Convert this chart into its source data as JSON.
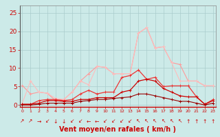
{
  "background_color": "#cceae8",
  "grid_color": "#aacccc",
  "xlabel": "Vent moyen/en rafales ( km/h )",
  "xlabel_color": "#cc0000",
  "xlabel_fontsize": 7,
  "tick_color": "#cc0000",
  "yticks": [
    0,
    5,
    10,
    15,
    20,
    25
  ],
  "xticks": [
    0,
    1,
    2,
    3,
    4,
    5,
    6,
    7,
    8,
    9,
    10,
    11,
    12,
    13,
    14,
    15,
    16,
    17,
    18,
    19,
    20,
    21,
    22,
    23
  ],
  "ylim": [
    -0.5,
    27
  ],
  "xlim": [
    -0.3,
    23.3
  ],
  "series": [
    {
      "x": [
        0,
        1,
        2,
        3,
        4,
        5,
        6,
        7,
        8,
        9,
        10,
        11,
        12,
        13,
        14,
        15,
        16,
        17,
        18,
        19,
        20,
        21,
        22,
        23
      ],
      "y": [
        5.3,
        3.0,
        3.5,
        3.2,
        1.2,
        1.5,
        3.5,
        6.5,
        8.5,
        10.5,
        10.2,
        8.5,
        8.5,
        8.5,
        19.5,
        21.0,
        15.5,
        15.8,
        11.5,
        11.0,
        6.5,
        6.5,
        5.2,
        5.2
      ],
      "color": "#ff9999",
      "lw": 0.8,
      "marker": "+"
    },
    {
      "x": [
        0,
        1,
        2,
        3,
        4,
        5,
        6,
        7,
        8,
        9,
        10,
        11,
        12,
        13,
        14,
        15,
        16,
        17,
        18,
        19,
        20,
        21,
        22,
        23
      ],
      "y": [
        0.5,
        6.5,
        3.5,
        3.2,
        1.8,
        1.5,
        3.5,
        6.5,
        5.5,
        10.5,
        10.2,
        8.5,
        8.5,
        8.5,
        19.5,
        21.0,
        15.5,
        15.8,
        11.5,
        6.5,
        6.5,
        6.5,
        5.2,
        5.2
      ],
      "color": "#ffbbbb",
      "lw": 0.8,
      "marker": "+"
    },
    {
      "x": [
        0,
        1,
        2,
        3,
        4,
        5,
        6,
        7,
        8,
        9,
        10,
        11,
        12,
        13,
        14,
        15,
        16,
        17,
        18,
        19,
        20,
        21,
        22,
        23
      ],
      "y": [
        0.2,
        0.2,
        1.2,
        1.5,
        1.5,
        1.2,
        1.5,
        3.0,
        4.0,
        3.0,
        3.5,
        3.5,
        7.5,
        8.0,
        9.5,
        7.0,
        7.5,
        5.0,
        5.2,
        5.2,
        5.2,
        2.2,
        0.2,
        1.5
      ],
      "color": "#ee3333",
      "lw": 0.9,
      "marker": "+"
    },
    {
      "x": [
        0,
        1,
        2,
        3,
        4,
        5,
        6,
        7,
        8,
        9,
        10,
        11,
        12,
        13,
        14,
        15,
        16,
        17,
        18,
        19,
        20,
        21,
        22,
        23
      ],
      "y": [
        0.2,
        0.2,
        0.5,
        1.2,
        1.2,
        1.0,
        1.0,
        1.5,
        1.5,
        2.0,
        2.0,
        2.0,
        3.5,
        4.0,
        6.5,
        7.0,
        6.5,
        4.5,
        3.5,
        2.5,
        2.2,
        2.2,
        0.2,
        1.2
      ],
      "color": "#cc0000",
      "lw": 0.9,
      "marker": "+"
    },
    {
      "x": [
        0,
        1,
        2,
        3,
        4,
        5,
        6,
        7,
        8,
        9,
        10,
        11,
        12,
        13,
        14,
        15,
        16,
        17,
        18,
        19,
        20,
        21,
        22,
        23
      ],
      "y": [
        0.0,
        0.0,
        0.2,
        0.5,
        0.5,
        0.5,
        0.5,
        1.0,
        1.2,
        1.5,
        1.5,
        1.8,
        2.0,
        2.2,
        3.0,
        3.0,
        2.5,
        2.0,
        1.5,
        1.0,
        1.0,
        0.5,
        0.0,
        0.5
      ],
      "color": "#990000",
      "lw": 0.8,
      "marker": "+"
    }
  ],
  "arrows": [
    "↗",
    "↗",
    "→",
    "↙",
    "↓",
    "↓",
    "↙",
    "↙",
    "←",
    "←",
    "↙",
    "↙",
    "↙",
    "↙",
    "↖",
    "↖",
    "↖",
    "↖",
    "↖",
    "↖",
    "↑",
    "↑",
    "↑",
    "↑"
  ],
  "arrow_color": "#cc0000",
  "arrow_fontsize": 5.5
}
